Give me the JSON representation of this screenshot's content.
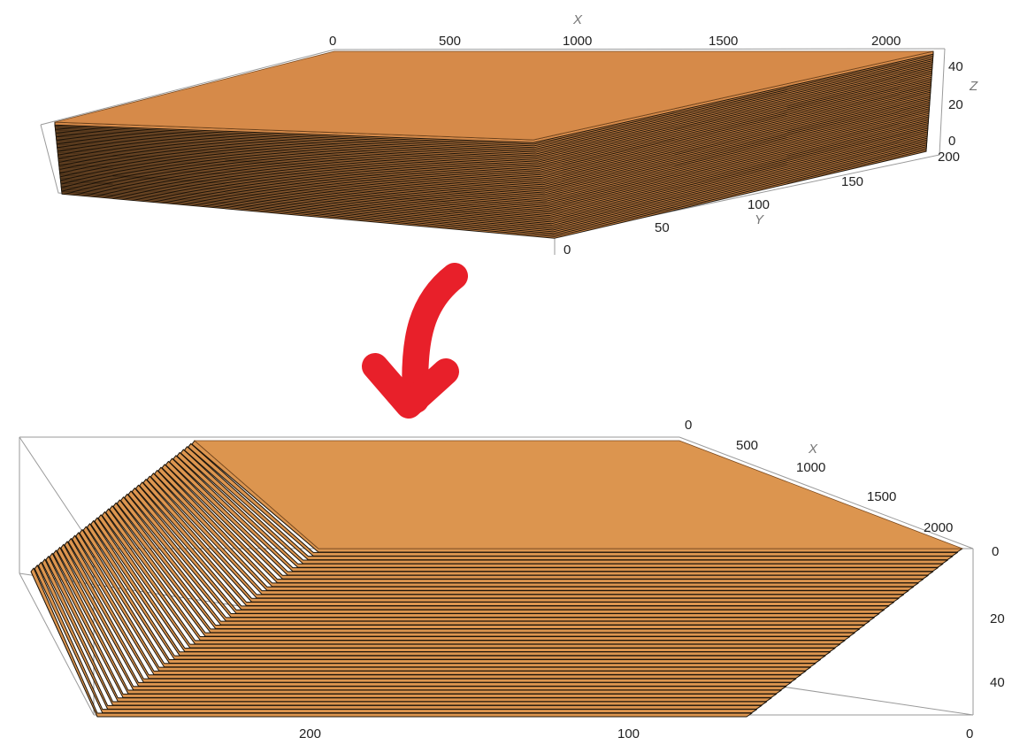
{
  "top_plot": {
    "x_axis": {
      "name": "X",
      "ticks": [
        "0",
        "500",
        "1000",
        "1500",
        "2000"
      ]
    },
    "y_axis": {
      "name": "Y",
      "ticks": [
        "0",
        "50",
        "100",
        "150",
        "200"
      ]
    },
    "z_axis": {
      "name": "Z",
      "ticks": [
        "0",
        "20",
        "40"
      ]
    }
  },
  "bottom_plot": {
    "x_axis": {
      "name": "X",
      "ticks": [
        "0",
        "500",
        "1000",
        "1500",
        "2000"
      ]
    },
    "y_axis": {
      "ticks": [
        "200",
        "100",
        "0"
      ]
    },
    "z_axis": {
      "ticks": [
        "0",
        "20",
        "40"
      ]
    }
  },
  "colors": {
    "surface_top": "#d68a49",
    "surface_bottom": "#dc954f",
    "layer_edge": "#1a1208",
    "bounding_box": "#9a9a9a",
    "arrow": "#e8202a"
  },
  "layers": {
    "top_count": 60,
    "bottom_count": 44
  }
}
